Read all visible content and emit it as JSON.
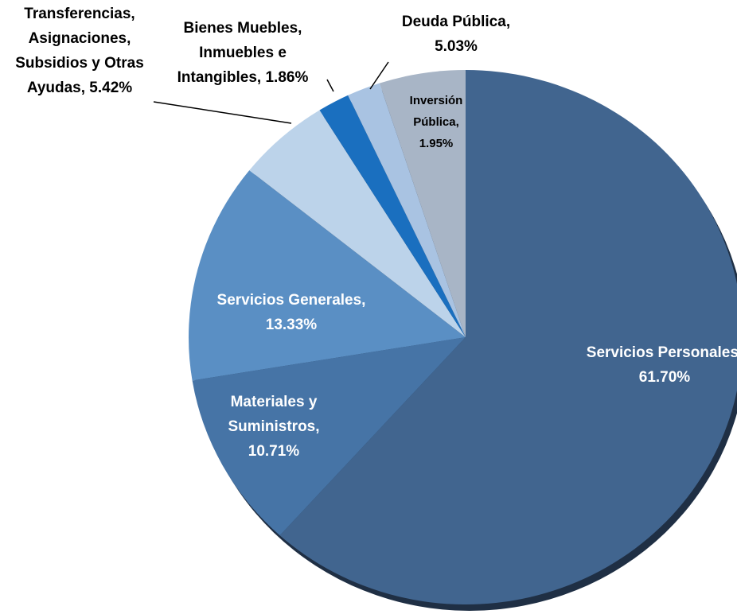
{
  "chart_data": {
    "type": "pie",
    "values": [
      61.7,
      10.71,
      13.33,
      5.42,
      1.86,
      1.95,
      5.03
    ],
    "value_labels": [
      "Servicios Personales, 61.70%",
      "Materiales y Suministros, 10.71%",
      "Servicios Generales, 13.33%",
      "Transferencias, Asignaciones, Subsidios y Otras Ayudas, 5.42%",
      "Bienes Muebles, Inmuebles e Intangibles, 1.86%",
      "Inversión Pública, 1.95%",
      "Deuda Pública, 5.03%"
    ],
    "colors": [
      "#41658f",
      "#4674a6",
      "#5a8fc4",
      "#bcd3ea",
      "#1a6fbf",
      "#a9c3e2",
      "#a8b5c6"
    ]
  }
}
